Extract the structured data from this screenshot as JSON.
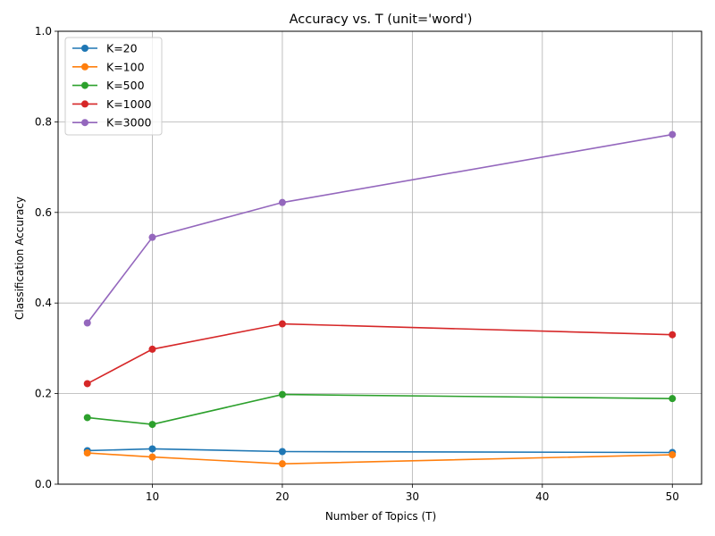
{
  "chart_data": {
    "type": "line",
    "title": "Accuracy vs. T (unit='word')",
    "xlabel": "Number of Topics (T)",
    "ylabel": "Classification Accuracy",
    "x": [
      5,
      10,
      20,
      50
    ],
    "xlim": [
      2.75,
      52.25
    ],
    "ylim": [
      0,
      1
    ],
    "xticks": [
      10,
      20,
      30,
      40,
      50
    ],
    "yticks": [
      0.0,
      0.2,
      0.4,
      0.6,
      0.8,
      1.0
    ],
    "xtick_labels": [
      "10",
      "20",
      "30",
      "40",
      "50"
    ],
    "ytick_labels": [
      "0.0",
      "0.2",
      "0.4",
      "0.6",
      "0.8",
      "1.0"
    ],
    "grid": true,
    "legend_position": "top-left",
    "series": [
      {
        "name": "K=20",
        "color": "#1f77b4",
        "values": [
          0.074,
          0.078,
          0.072,
          0.07
        ]
      },
      {
        "name": "K=100",
        "color": "#ff7f0e",
        "values": [
          0.069,
          0.06,
          0.045,
          0.065
        ]
      },
      {
        "name": "K=500",
        "color": "#2ca02c",
        "values": [
          0.147,
          0.132,
          0.198,
          0.189
        ]
      },
      {
        "name": "K=1000",
        "color": "#d62728",
        "values": [
          0.222,
          0.298,
          0.354,
          0.33
        ]
      },
      {
        "name": "K=3000",
        "color": "#9467bd",
        "values": [
          0.356,
          0.545,
          0.622,
          0.772
        ]
      }
    ]
  }
}
